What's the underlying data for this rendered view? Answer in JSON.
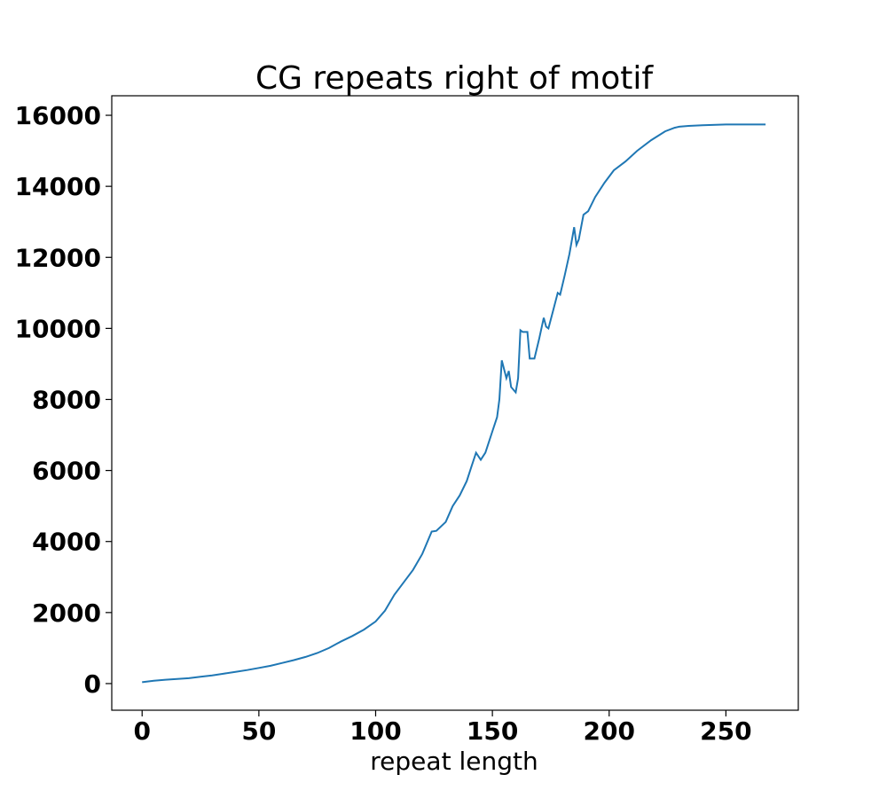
{
  "chart_data": {
    "type": "line",
    "title": "CG repeats right of motif",
    "xlabel": "repeat length",
    "ylabel": "",
    "xlim": [
      -13,
      281
    ],
    "ylim": [
      -750,
      16550
    ],
    "xticks": [
      0,
      50,
      100,
      150,
      200,
      250
    ],
    "yticks": [
      0,
      2000,
      4000,
      6000,
      8000,
      10000,
      12000,
      14000,
      16000
    ],
    "grid": false,
    "line_color": "#1f77b4",
    "series": [
      {
        "x": [
          0,
          5,
          10,
          15,
          20,
          25,
          30,
          35,
          40,
          45,
          50,
          55,
          60,
          65,
          70,
          75,
          80,
          85,
          90,
          95,
          100,
          104,
          108,
          112,
          116,
          120,
          124,
          126,
          130,
          133,
          136,
          139,
          141,
          143,
          145,
          147,
          150,
          152,
          153,
          154,
          156,
          157,
          158,
          160,
          161,
          162,
          163,
          165,
          166,
          168,
          170,
          172,
          173,
          174,
          176,
          178,
          179,
          181,
          183,
          185,
          186,
          187,
          189,
          191,
          194,
          198,
          202,
          207,
          212,
          218,
          224,
          228,
          230,
          234,
          240,
          250,
          260,
          267
        ],
        "y": [
          40,
          80,
          110,
          130,
          150,
          190,
          230,
          280,
          330,
          380,
          440,
          500,
          580,
          660,
          750,
          860,
          1000,
          1180,
          1340,
          1520,
          1750,
          2050,
          2500,
          2850,
          3200,
          3650,
          4280,
          4300,
          4550,
          5000,
          5300,
          5700,
          6100,
          6500,
          6300,
          6500,
          7100,
          7500,
          8000,
          9100,
          8600,
          8800,
          8350,
          8200,
          8600,
          9950,
          9900,
          9900,
          9150,
          9150,
          9700,
          10300,
          10050,
          10000,
          10500,
          11000,
          10950,
          11500,
          12100,
          12850,
          12350,
          12500,
          13200,
          13300,
          13700,
          14100,
          14450,
          14700,
          15000,
          15300,
          15550,
          15650,
          15680,
          15700,
          15720,
          15740,
          15740,
          15740
        ]
      }
    ]
  }
}
